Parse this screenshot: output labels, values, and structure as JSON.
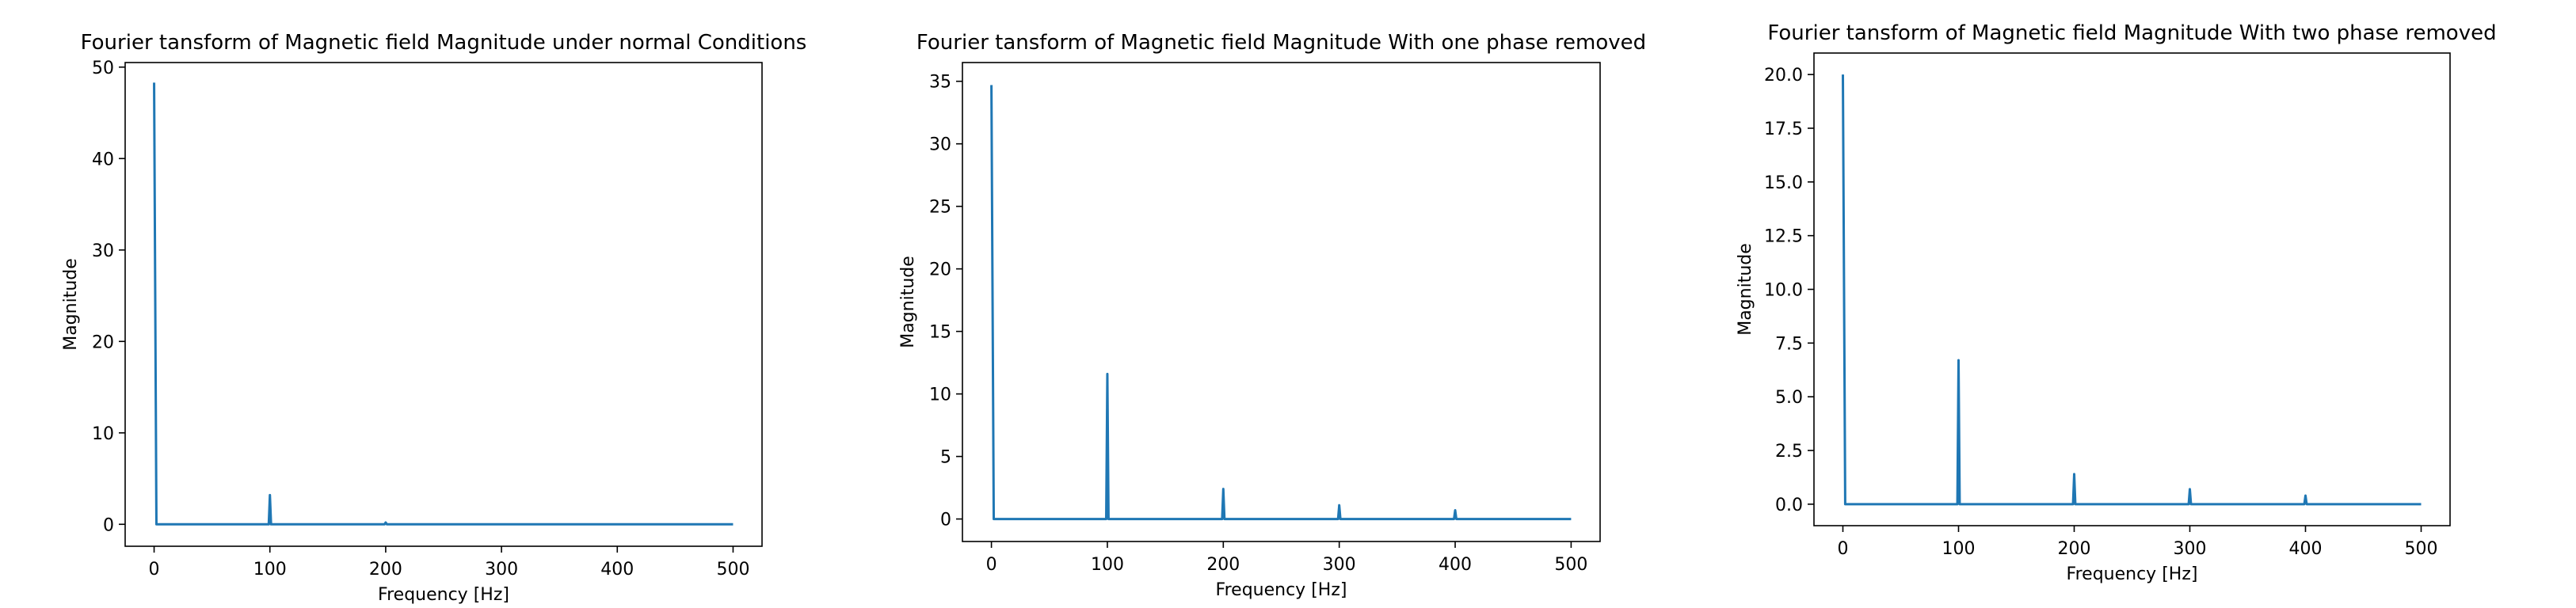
{
  "chart_data": [
    {
      "type": "line",
      "title": "Fourier tansform of Magnetic field Magnitude under normal Conditions",
      "xlabel": "Frequency [Hz]",
      "ylabel": "Magnitude",
      "xlim": [
        -25,
        525
      ],
      "ylim": [
        -2.4,
        50.5
      ],
      "xticks": [
        0,
        100,
        200,
        300,
        400,
        500
      ],
      "xtick_labels": [
        "0",
        "100",
        "200",
        "300",
        "400",
        "500"
      ],
      "yticks": [
        0,
        10,
        20,
        30,
        40,
        50
      ],
      "ytick_labels": [
        "0",
        "10",
        "20",
        "30",
        "40",
        "50"
      ],
      "grid": false,
      "line_color": "#1f77b4",
      "series": [
        {
          "x": [
            0,
            2,
            99,
            100,
            101,
            199,
            200,
            201,
            500
          ],
          "y": [
            48.3,
            0,
            0,
            3.2,
            0,
            0,
            0.2,
            0,
            0
          ]
        }
      ]
    },
    {
      "type": "line",
      "title": "Fourier tansform of Magnetic field Magnitude With one phase removed",
      "xlabel": "Frequency [Hz]",
      "ylabel": "Magnitude",
      "xlim": [
        -25,
        525
      ],
      "ylim": [
        -1.8,
        36.5
      ],
      "xticks": [
        0,
        100,
        200,
        300,
        400,
        500
      ],
      "xtick_labels": [
        "0",
        "100",
        "200",
        "300",
        "400",
        "500"
      ],
      "yticks": [
        0,
        5,
        10,
        15,
        20,
        25,
        30,
        35
      ],
      "ytick_labels": [
        "0",
        "5",
        "10",
        "15",
        "20",
        "25",
        "30",
        "35"
      ],
      "grid": false,
      "line_color": "#1f77b4",
      "series": [
        {
          "x": [
            0,
            2,
            99,
            100,
            101,
            199,
            200,
            201,
            299,
            300,
            301,
            399,
            400,
            401,
            500
          ],
          "y": [
            34.7,
            0,
            0,
            11.6,
            0,
            0,
            2.4,
            0,
            0,
            1.1,
            0,
            0,
            0.7,
            0,
            0
          ]
        }
      ]
    },
    {
      "type": "line",
      "title": "Fourier tansform of Magnetic field Magnitude With two phase removed",
      "xlabel": "Frequency [Hz]",
      "ylabel": "Magnitude",
      "xlim": [
        -25,
        525
      ],
      "ylim": [
        -1.0,
        21.0
      ],
      "xticks": [
        0,
        100,
        200,
        300,
        400,
        500
      ],
      "xtick_labels": [
        "0",
        "100",
        "200",
        "300",
        "400",
        "500"
      ],
      "yticks": [
        0,
        2.5,
        5,
        7.5,
        10,
        12.5,
        15,
        17.5,
        20
      ],
      "ytick_labels": [
        "0.0",
        "2.5",
        "5.0",
        "7.5",
        "10.0",
        "12.5",
        "15.0",
        "17.5",
        "20.0"
      ],
      "grid": false,
      "line_color": "#1f77b4",
      "series": [
        {
          "x": [
            0,
            2,
            99,
            100,
            101,
            199,
            200,
            201,
            299,
            300,
            301,
            399,
            400,
            401,
            500
          ],
          "y": [
            20.0,
            0,
            0,
            6.7,
            0,
            0,
            1.4,
            0,
            0,
            0.7,
            0,
            0,
            0.4,
            0,
            0
          ]
        }
      ]
    }
  ]
}
